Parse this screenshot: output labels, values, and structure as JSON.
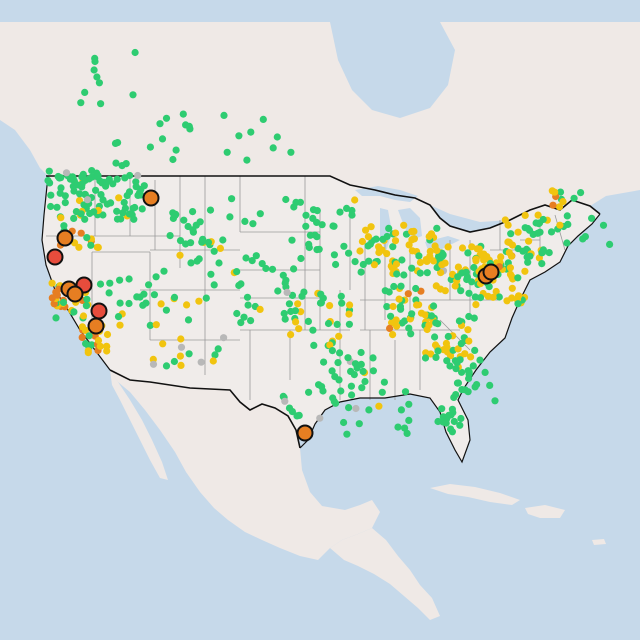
{
  "map": {
    "colors": {
      "water": "#c6d9ea",
      "land": "#efe9e6",
      "usa": "#f0ecea",
      "terrain": "#e4ddd9",
      "state_border": "#9a9a9a",
      "country_border": "#111111",
      "good": "#2ecc71",
      "moderate": "#f1c40f",
      "usg": "#e67e22",
      "unhealthy": "#e74c3c",
      "no_data": "#b8b8b8",
      "marker_outline": "#111111"
    },
    "marker_categories": [
      "good",
      "moderate",
      "unhealthy-for-sensitive-groups",
      "unhealthy",
      "no-data"
    ]
  }
}
